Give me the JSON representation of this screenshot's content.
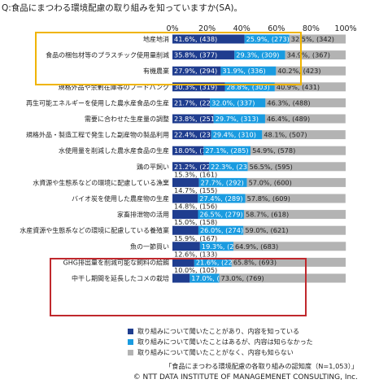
{
  "title": "Q:食品にまつわる環境配慮の取り組みを知っていますか(SA)。",
  "chart_data": {
    "type": "bar",
    "stacked": true,
    "horizontal": true,
    "xlim": [
      0,
      100
    ],
    "x_ticks": [
      "0%",
      "20%",
      "40%",
      "60%",
      "80%",
      "100%"
    ],
    "categories": [
      "地産地消",
      "食品の梱包材等のプラスチック使用量削減",
      "有機農業",
      "規格外品や余剰在庫等のフードバンク",
      "再生可能エネルギーを使用した農水産食品の生産",
      "需要に合わせた生産量の調整",
      "規格外品・製造工程で発生した副産物の製品利用",
      "水使用量を削減した農水産食品の生産",
      "鶏の平飼い",
      "水資源や生態系などの環境に配慮している漁業",
      "バイオ炭を使用した農産物の生産",
      "家畜排泄物の活用",
      "水産資源や生態系などの環境に配慮している養殖業",
      "魚の一節買い",
      "GHG排出量を削減可能な飼料の給餌",
      "中干し期間を延長したコメの栽培"
    ],
    "series": [
      {
        "name": "取り組みについて聞いたことがあり、内容を知っている",
        "color": "#1f3d8f",
        "values": [
          41.6,
          35.8,
          27.9,
          30.3,
          21.7,
          23.8,
          22.4,
          18.0,
          21.2,
          15.3,
          14.7,
          14.8,
          15.0,
          15.9,
          12.6,
          10.0
        ],
        "labels": [
          "41.6%, (438)",
          "35.8%, (377)",
          "27.9%, (294)",
          "30.3%, (319)",
          "21.7%, (228)",
          "23.8%, (251)",
          "22.4%, (236)",
          "18.0%, (190)",
          "21.2%, (223)",
          "15.3%, (161)",
          "14.7%, (155)",
          "14.8%, (156)",
          "15.0%, (158)",
          "15.9%, (167)",
          "12.6%, (133)",
          "10.0%, (105)"
        ]
      },
      {
        "name": "取り組みについて聞いたことはあるが、内容は知らなかった",
        "color": "#1a9be0",
        "values": [
          25.9,
          29.3,
          31.9,
          28.8,
          32.0,
          29.7,
          29.4,
          27.1,
          22.3,
          27.7,
          27.4,
          26.5,
          26.0,
          19.3,
          21.6,
          17.0
        ],
        "labels": [
          "25.9%, (273)",
          "29.3%, (309)",
          "31.9%, (336)",
          "28.8%, (303)",
          "32.0%, (337)",
          "29.7%, (313)",
          "29.4%, (310)",
          "27.1%, (285)",
          "22.3%, (235)",
          "27.7%, (292)",
          "27.4%, (289)",
          "26.5%, (279)",
          "26.0%, (274)",
          "19.3%, (203)",
          "21.6%, (227)",
          "17.0%, (179)"
        ]
      },
      {
        "name": "取り組みについて聞いたことがなく、内容も知らない",
        "color": "#b3b3b3",
        "values": [
          32.5,
          34.9,
          40.2,
          40.9,
          46.3,
          46.4,
          48.1,
          54.9,
          56.5,
          57.0,
          57.8,
          58.7,
          59.0,
          64.9,
          65.8,
          73.0
        ],
        "labels": [
          "32.5%, (342)",
          "34.9%, (367)",
          "40.2%, (423)",
          "40.9%, (431)",
          "46.3%, (488)",
          "46.4%, (489)",
          "48.1%, (507)",
          "54.9%, (578)",
          "56.5%, (595)",
          "57.0%, (600)",
          "57.8%, (609)",
          "58.7%, (618)",
          "59.0%, (621)",
          "64.9%, (683)",
          "65.8%, (693)",
          "73.0%, (769)"
        ]
      }
    ],
    "highlight_box_colors": [
      "#f0b400",
      "#c0282d"
    ],
    "note": "「食品にまつわる環境配慮の各取り組みの認知度（N=1,053）」",
    "copyright": "© NTT DATA INSTITUTE OF MANAGEMENET CONSULTING, Inc."
  }
}
